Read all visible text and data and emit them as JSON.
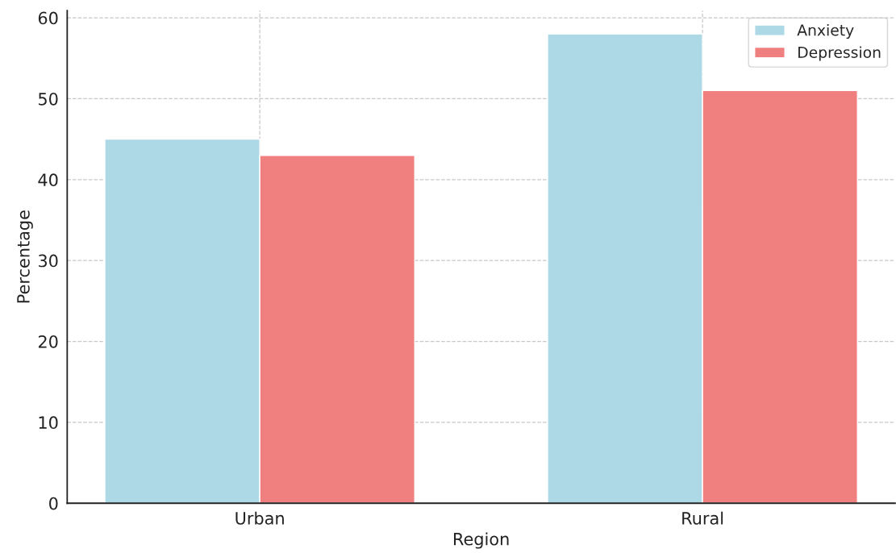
{
  "chart_data": {
    "type": "bar",
    "xlabel": "Region",
    "ylabel": "Percentage",
    "categories": [
      "Urban",
      "Rural"
    ],
    "series": [
      {
        "name": "Anxiety",
        "color": "#add8e6",
        "values": [
          45,
          58
        ]
      },
      {
        "name": "Depression",
        "color": "#f08080",
        "values": [
          43,
          51
        ]
      }
    ],
    "ylim": [
      0,
      60.9
    ],
    "yticks": [
      0,
      10,
      20,
      30,
      40,
      50,
      60
    ],
    "grid": true,
    "legend": "top right"
  }
}
